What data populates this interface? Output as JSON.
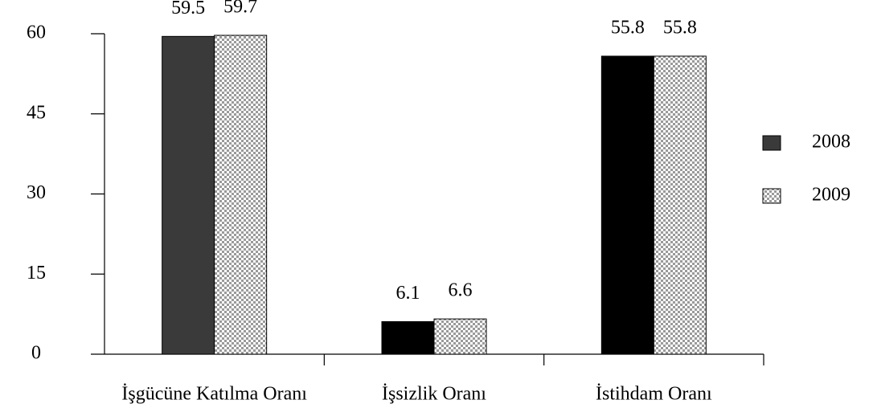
{
  "chart_data": {
    "type": "bar",
    "categories": [
      "İşgücüne Katılma Oranı",
      "İşsizlik Oranı",
      "İstihdam Oranı"
    ],
    "series": [
      {
        "name": "2008",
        "color": "#000000",
        "colors": [
          "#3a3a3a",
          "#000000",
          "#000000"
        ],
        "values": [
          59.5,
          6.1,
          55.8
        ]
      },
      {
        "name": "2009",
        "color": "#9a9a9a",
        "pattern": "checker",
        "values": [
          59.7,
          6.6,
          55.8
        ]
      }
    ],
    "ylim": [
      0,
      60
    ],
    "yticks": [
      0,
      15,
      30,
      45,
      60
    ],
    "grid": false,
    "legend": "right"
  }
}
